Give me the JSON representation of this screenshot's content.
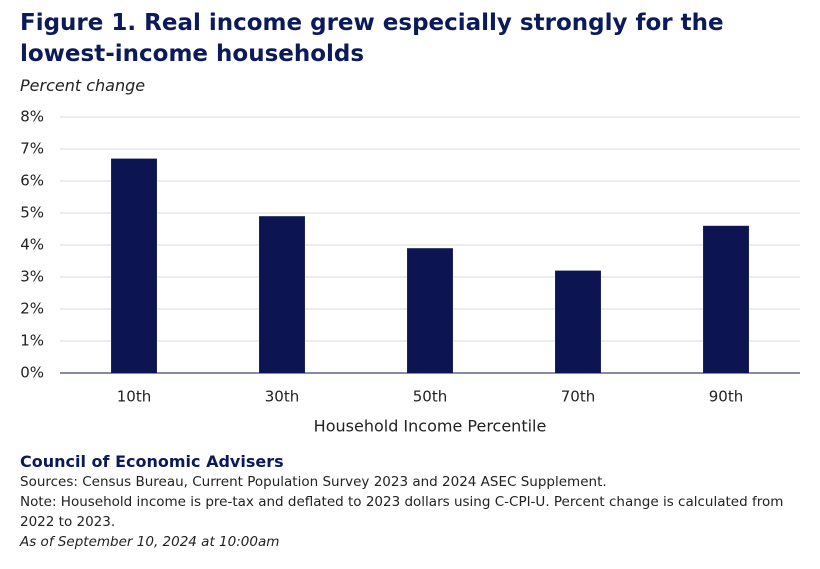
{
  "chart_data": {
    "type": "bar",
    "title": "Figure 1. Real income grew especially strongly for the lowest-income households",
    "subtitle": "Percent change",
    "x_label": "Household Income Percentile",
    "categories": [
      "10th",
      "30th",
      "50th",
      "70th",
      "90th"
    ],
    "values": [
      6.7,
      4.9,
      3.9,
      3.2,
      4.6
    ],
    "color": "#0d1452",
    "ylim": [
      0,
      8
    ],
    "yticks": [
      {
        "value": 0,
        "label": "0%"
      },
      {
        "value": 1,
        "label": "1%"
      },
      {
        "value": 2,
        "label": "2%"
      },
      {
        "value": 3,
        "label": "3%"
      },
      {
        "value": 4,
        "label": "4%"
      },
      {
        "value": 5,
        "label": "5%"
      },
      {
        "value": 6,
        "label": "6%"
      },
      {
        "value": 7,
        "label": "7%"
      },
      {
        "value": 8,
        "label": "8%"
      }
    ],
    "grid": true,
    "credit": "Council of Economic Advisers",
    "sources": "Sources: Census Bureau, Current Population Survey 2023 and 2024 ASEC Supplement.",
    "note": "Note: Household income is pre-tax and deflated to 2023 dollars using C-CPI-U. Percent change is calculated from 2022 to 2023.",
    "date": "As of September 10, 2024 at 10:00am"
  }
}
